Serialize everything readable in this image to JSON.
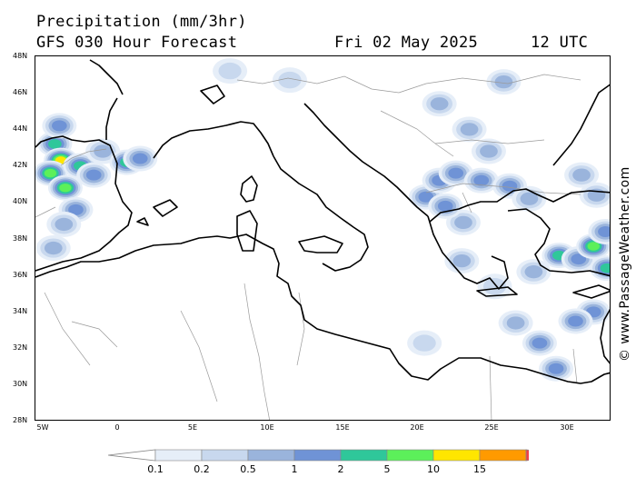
{
  "header": {
    "title": "Precipitation (mm/3hr)",
    "forecast": "GFS 030 Hour Forecast",
    "date": "Fri 02 May 2025",
    "time": "12 UTC"
  },
  "map": {
    "lat_labels": [
      "48N",
      "46N",
      "44N",
      "42N",
      "40N",
      "38N",
      "36N",
      "34N",
      "32N",
      "30N",
      "28N"
    ],
    "lon_labels": [
      "5W",
      "0",
      "5E",
      "10E",
      "15E",
      "20E",
      "25E",
      "30E"
    ],
    "lat_range": [
      28,
      48
    ],
    "lon_range": [
      -5.5,
      33
    ],
    "precip_cells": [
      {
        "lon": -4.2,
        "lat": 43.2,
        "level": 4
      },
      {
        "lon": -3.8,
        "lat": 42.3,
        "level": 6
      },
      {
        "lon": -4.5,
        "lat": 41.6,
        "level": 5
      },
      {
        "lon": -3.5,
        "lat": 40.8,
        "level": 5
      },
      {
        "lon": -3.9,
        "lat": 44.2,
        "level": 3
      },
      {
        "lon": -2.5,
        "lat": 42.0,
        "level": 4
      },
      {
        "lon": -1.6,
        "lat": 41.5,
        "level": 3
      },
      {
        "lon": -2.8,
        "lat": 39.6,
        "level": 3
      },
      {
        "lon": -3.6,
        "lat": 38.8,
        "level": 2
      },
      {
        "lon": -1.0,
        "lat": 42.8,
        "level": 2
      },
      {
        "lon": 0.6,
        "lat": 42.2,
        "level": 4
      },
      {
        "lon": 1.5,
        "lat": 42.4,
        "level": 3
      },
      {
        "lon": -4.3,
        "lat": 37.5,
        "level": 2
      },
      {
        "lon": 20.6,
        "lat": 40.3,
        "level": 3
      },
      {
        "lon": 21.5,
        "lat": 41.2,
        "level": 3
      },
      {
        "lon": 22.6,
        "lat": 41.6,
        "level": 3
      },
      {
        "lon": 24.3,
        "lat": 41.2,
        "level": 3
      },
      {
        "lon": 26.2,
        "lat": 40.9,
        "level": 3
      },
      {
        "lon": 23.1,
        "lat": 38.9,
        "level": 2
      },
      {
        "lon": 21.9,
        "lat": 39.8,
        "level": 3
      },
      {
        "lon": 27.5,
        "lat": 40.2,
        "level": 2
      },
      {
        "lon": 24.8,
        "lat": 42.8,
        "level": 2
      },
      {
        "lon": 23.5,
        "lat": 44.0,
        "level": 2
      },
      {
        "lon": 25.8,
        "lat": 46.6,
        "level": 2
      },
      {
        "lon": 29.5,
        "lat": 37.1,
        "level": 4
      },
      {
        "lon": 30.8,
        "lat": 36.9,
        "level": 3
      },
      {
        "lon": 31.8,
        "lat": 37.6,
        "level": 5
      },
      {
        "lon": 32.7,
        "lat": 36.4,
        "level": 4
      },
      {
        "lon": 32.6,
        "lat": 38.4,
        "level": 3
      },
      {
        "lon": 31.8,
        "lat": 34.0,
        "level": 3
      },
      {
        "lon": 30.6,
        "lat": 33.5,
        "level": 3
      },
      {
        "lon": 28.2,
        "lat": 32.3,
        "level": 3
      },
      {
        "lon": 26.6,
        "lat": 33.4,
        "level": 2
      },
      {
        "lon": 29.3,
        "lat": 30.9,
        "level": 3
      },
      {
        "lon": 27.8,
        "lat": 36.2,
        "level": 2
      },
      {
        "lon": 32.0,
        "lat": 40.4,
        "level": 2
      },
      {
        "lon": 11.5,
        "lat": 46.7,
        "level": 1
      },
      {
        "lon": 7.5,
        "lat": 47.2,
        "level": 1
      },
      {
        "lon": 21.5,
        "lat": 45.4,
        "level": 2
      },
      {
        "lon": 31.0,
        "lat": 41.5,
        "level": 2
      },
      {
        "lon": 20.5,
        "lat": 32.3,
        "level": 1
      },
      {
        "lon": 25.2,
        "lat": 35.4,
        "level": 1
      },
      {
        "lon": 23.0,
        "lat": 36.8,
        "level": 2
      }
    ]
  },
  "watermark": "© www.PassageWeather.com",
  "legend": {
    "labels": [
      "0.1",
      "0.2",
      "0.5",
      "1",
      "2",
      "5",
      "10",
      "15"
    ],
    "colors": [
      "#e6eef8",
      "#c8d8ee",
      "#9ab4dc",
      "#6f93d6",
      "#2fc79a",
      "#5cf05a",
      "#ffe600",
      "#ff9a00",
      "#f0404a"
    ]
  }
}
